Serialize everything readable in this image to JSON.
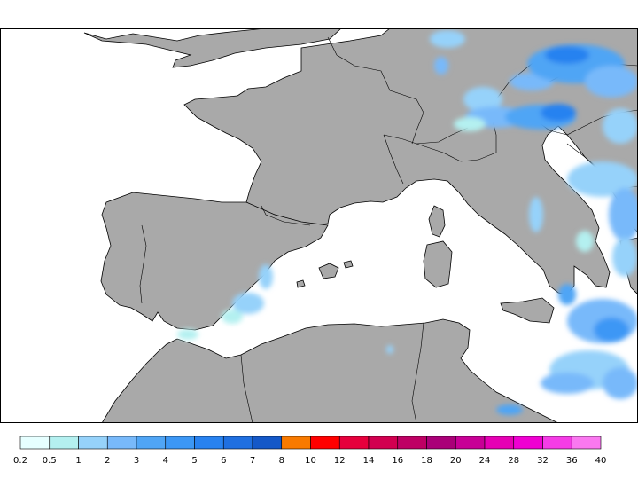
{
  "map": {
    "land_color": "#a9a9a9",
    "sea_color": "#ffffff",
    "border_color": "#000000"
  },
  "legend": {
    "colors": [
      "#e6ffff",
      "#b4f0f0",
      "#96d2fa",
      "#78b9fa",
      "#50a5f5",
      "#3c97f5",
      "#2882f0",
      "#1f6fe0",
      "#1458c8",
      "#f87a00",
      "#ff0000",
      "#e6003c",
      "#d20050",
      "#be0064",
      "#aa0078",
      "#c80096",
      "#e600b4",
      "#f000d2",
      "#f53ce6",
      "#fa78f0"
    ],
    "labels": [
      "0.2",
      "0.5",
      "1",
      "2",
      "3",
      "4",
      "5",
      "6",
      "7",
      "8",
      "10",
      "12",
      "14",
      "16",
      "18",
      "20",
      "24",
      "28",
      "32",
      "36",
      "40"
    ]
  }
}
